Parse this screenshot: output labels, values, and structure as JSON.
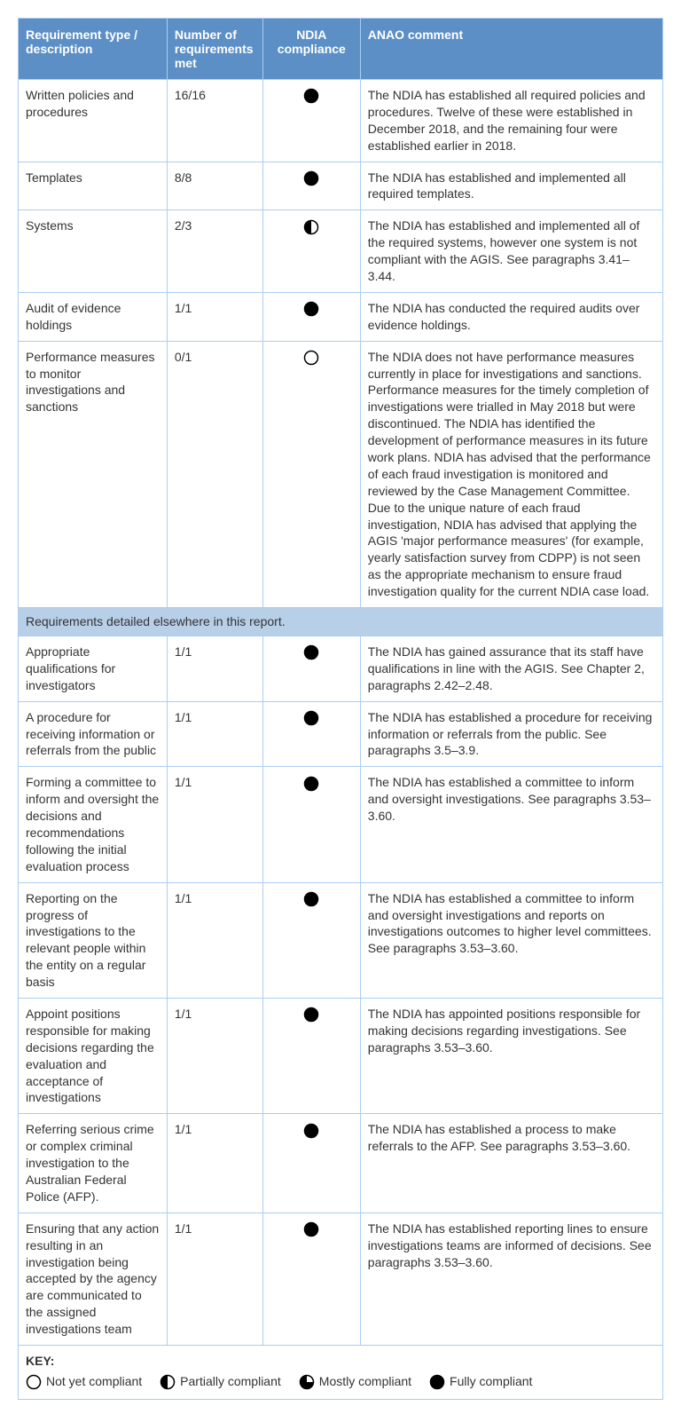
{
  "colors": {
    "header_bg": "#5c8fc5",
    "header_text": "#ffffff",
    "border": "#a9cef1",
    "section_bg": "#b8cfe8",
    "cell_bg": "#ffffff",
    "text": "#333333",
    "icon_stroke": "#000000",
    "icon_fill": "#000000"
  },
  "columns": {
    "c1": "Requirement type / description",
    "c2": "Number of requirements met",
    "c3": "NDIA compliance",
    "c4": "ANAO comment"
  },
  "rows": [
    {
      "desc": "Written policies and procedures",
      "met": "16/16",
      "compliance": "full",
      "comment": "The NDIA has established all required policies and procedures. Twelve of these were established in December 2018, and the remaining four were established earlier in 2018."
    },
    {
      "desc": "Templates",
      "met": "8/8",
      "compliance": "full",
      "comment": "The NDIA has established and implemented all required templates."
    },
    {
      "desc": "Systems",
      "met": "2/3",
      "compliance": "partial",
      "comment": "The NDIA has established and implemented all of the required systems, however one system is not compliant with the AGIS. See paragraphs 3.41–3.44."
    },
    {
      "desc": "Audit of evidence holdings",
      "met": "1/1",
      "compliance": "full",
      "comment": "The NDIA has conducted the required audits over evidence holdings."
    },
    {
      "desc": "Performance measures to monitor investigations and sanctions",
      "met": "0/1",
      "compliance": "none",
      "comment": "The NDIA does not have performance measures currently in place for investigations and sanctions. Performance measures for the timely completion of investigations were trialled in May 2018 but were discontinued. The NDIA has identified the development of performance measures in its future work plans. NDIA has advised that the performance of each fraud investigation is monitored and reviewed by the Case Management Committee. Due to the unique nature of each fraud investigation, NDIA has advised that applying the AGIS 'major performance measures' (for example, yearly satisfaction survey from CDPP) is not seen as the appropriate mechanism to ensure fraud investigation quality for the current NDIA case load."
    }
  ],
  "section_header": "Requirements detailed elsewhere in this report.",
  "rows2": [
    {
      "desc": "Appropriate qualifications for investigators",
      "met": "1/1",
      "compliance": "full",
      "comment": "The NDIA has gained assurance that its staff have qualifications in line with the AGIS. See Chapter 2, paragraphs 2.42–2.48."
    },
    {
      "desc": "A procedure for receiving information or referrals from the public",
      "met": "1/1",
      "compliance": "full",
      "comment": "The NDIA has established a procedure for receiving information or referrals from the public. See paragraphs 3.5–3.9."
    },
    {
      "desc": "Forming a committee to inform and oversight the decisions and recommendations following the initial evaluation process",
      "met": "1/1",
      "compliance": "full",
      "comment": "The NDIA has established a committee to inform and oversight investigations. See paragraphs 3.53–3.60."
    },
    {
      "desc": "Reporting on the progress of investigations to the relevant people within the entity on a regular basis",
      "met": "1/1",
      "compliance": "full",
      "comment": "The NDIA has established a committee to inform and oversight investigations and reports on investigations outcomes to higher level committees. See paragraphs 3.53–3.60."
    },
    {
      "desc": "Appoint positions responsible for making decisions regarding the evaluation and acceptance of investigations",
      "met": "1/1",
      "compliance": "full",
      "comment": "The NDIA has appointed positions responsible for making decisions regarding investigations. See paragraphs 3.53–3.60."
    },
    {
      "desc": "Referring serious crime or complex criminal investigation to the Australian Federal Police (AFP).",
      "met": "1/1",
      "compliance": "full",
      "comment": "The NDIA has established a process to make referrals to the AFP. See paragraphs 3.53–3.60."
    },
    {
      "desc": "Ensuring that any action resulting in an investigation being accepted by the agency are communicated to the assigned investigations team",
      "met": "1/1",
      "compliance": "full",
      "comment": "The NDIA has established reporting lines to ensure investigations teams are informed of decisions. See paragraphs 3.53–3.60."
    }
  ],
  "key": {
    "label": "KEY:",
    "items": [
      {
        "icon": "none",
        "text": "Not yet compliant"
      },
      {
        "icon": "partial",
        "text": "Partially compliant"
      },
      {
        "icon": "mostly",
        "text": "Mostly compliant"
      },
      {
        "icon": "full",
        "text": "Fully compliant"
      }
    ]
  },
  "icons": {
    "none": {
      "type": "circle",
      "fill": "none",
      "stroke": "#000000"
    },
    "partial": {
      "type": "half-left",
      "fill": "#000000",
      "stroke": "#000000"
    },
    "mostly": {
      "type": "three-quarter",
      "fill": "#000000",
      "stroke": "#000000"
    },
    "full": {
      "type": "circle",
      "fill": "#000000",
      "stroke": "#000000"
    }
  }
}
